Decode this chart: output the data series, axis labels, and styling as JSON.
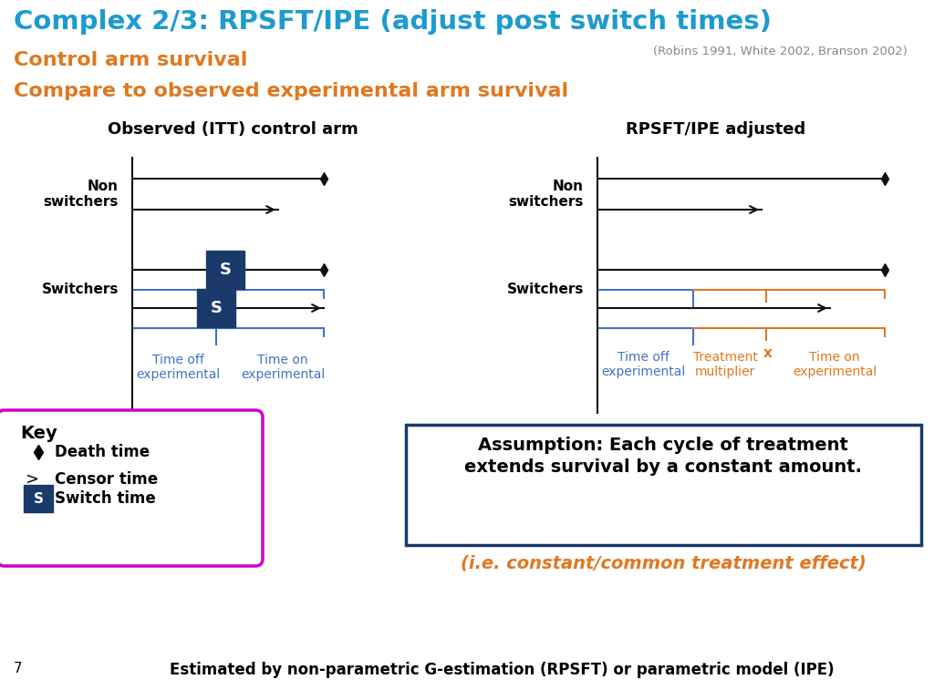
{
  "title": "Complex 2/3: RPSFT/IPE (adjust post switch times)",
  "title_color": "#1E9BCE",
  "subtitle1": "Control arm survival",
  "subtitle2": "Compare to observed experimental arm survival",
  "subtitle_color": "#E07820",
  "reference": "(Robins 1991, White 2002, Branson 2002)",
  "reference_color": "#888888",
  "left_panel_title": "Observed (ITT) control arm",
  "right_panel_title": "RPSFT/IPE adjusted",
  "non_switchers_label": "Non\nswitchers",
  "switchers_label": "Switchers",
  "blue_dark": "#1A3A6B",
  "line_color": "#111111",
  "bracket_color_blue": "#4472C4",
  "bracket_color_orange": "#E07820",
  "key_border_color": "#CC00CC",
  "assumption_border_color": "#1A3A6B",
  "assumption_text": "Assumption: Each cycle of treatment\nextends survival by a constant amount.",
  "ie_text": "(i.e. constant/common treatment effect)",
  "ie_color": "#E07820",
  "bottom_text": "Estimated by non-parametric G-estimation (RPSFT) or parametric model (IPE)",
  "page_num": "7"
}
